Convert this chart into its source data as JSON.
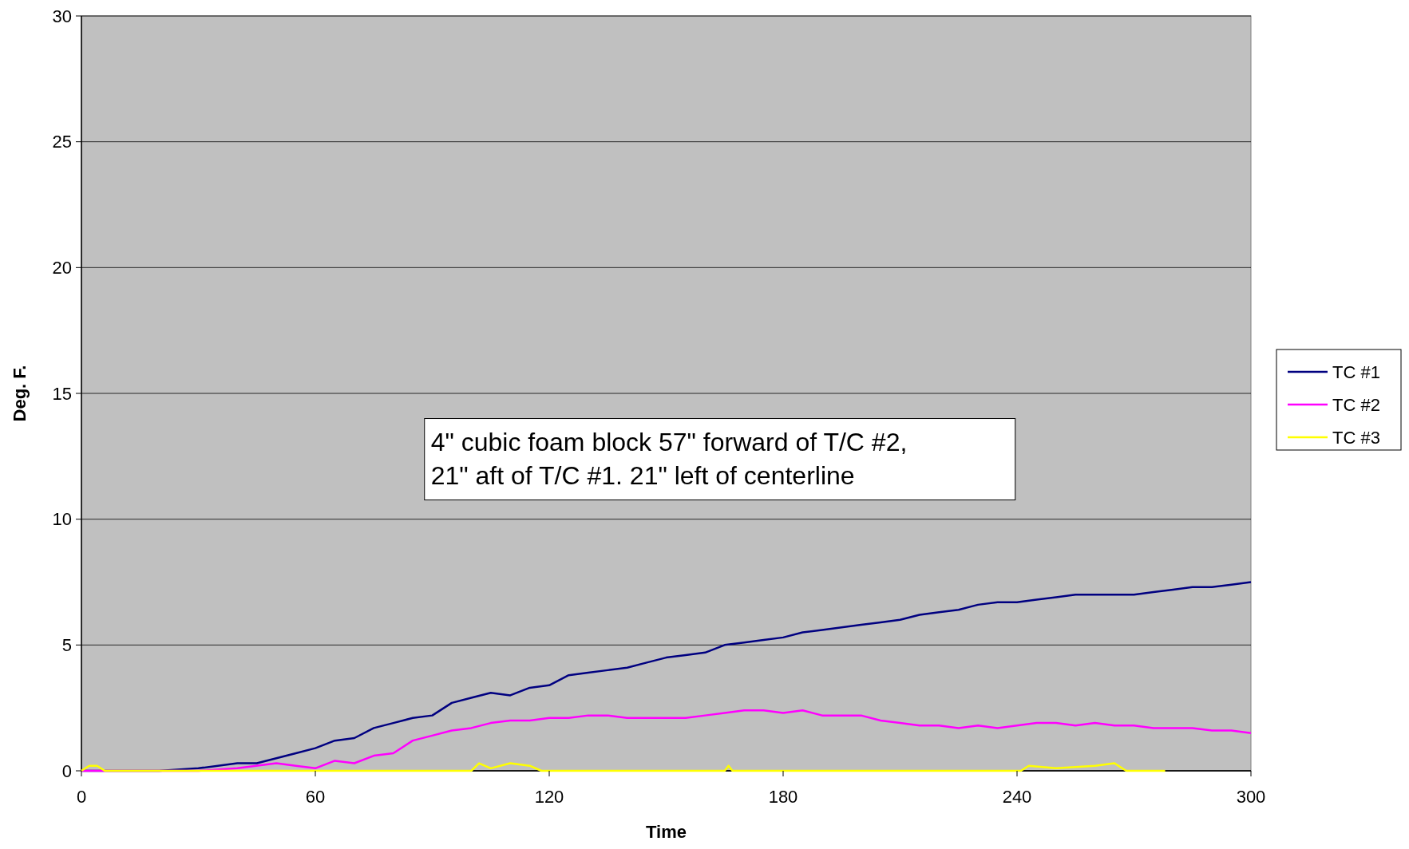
{
  "chart_data": {
    "type": "line",
    "xlabel": "Time",
    "ylabel": "Deg. F.",
    "xlim": [
      0,
      300
    ],
    "xticks": [
      0,
      60,
      120,
      180,
      240,
      300
    ],
    "ylim": [
      0,
      30
    ],
    "yticks": [
      0,
      5,
      10,
      15,
      20,
      25,
      30
    ],
    "grid": "y",
    "legend": "right",
    "marker": "none",
    "line_style": "solid",
    "annotations": [
      "4\" cubic foam block 57\" forward of T/C #2, 21\" aft of T/C #1. 21\" left of centerline"
    ],
    "series": [
      {
        "name": "TC #1",
        "color": "#000080",
        "x": [
          0,
          10,
          20,
          30,
          35,
          40,
          45,
          50,
          55,
          60,
          65,
          70,
          75,
          80,
          85,
          90,
          95,
          100,
          105,
          110,
          115,
          120,
          125,
          130,
          135,
          140,
          145,
          150,
          155,
          160,
          165,
          170,
          175,
          180,
          185,
          190,
          195,
          200,
          205,
          210,
          215,
          220,
          225,
          230,
          235,
          240,
          245,
          250,
          255,
          260,
          265,
          270,
          275,
          280,
          285,
          290,
          295,
          300
        ],
        "values": [
          0,
          0,
          0,
          0.1,
          0.2,
          0.3,
          0.3,
          0.5,
          0.7,
          0.9,
          1.2,
          1.3,
          1.7,
          1.9,
          2.1,
          2.2,
          2.7,
          2.9,
          3.1,
          3.0,
          3.3,
          3.4,
          3.8,
          3.9,
          4.0,
          4.1,
          4.3,
          4.5,
          4.6,
          4.7,
          5.0,
          5.1,
          5.2,
          5.3,
          5.5,
          5.6,
          5.7,
          5.8,
          5.9,
          6.0,
          6.2,
          6.3,
          6.4,
          6.6,
          6.7,
          6.7,
          6.8,
          6.9,
          7.0,
          7.0,
          7.0,
          7.0,
          7.1,
          7.2,
          7.3,
          7.3,
          7.4,
          7.5
        ]
      },
      {
        "name": "TC #2",
        "color": "#ff00ff",
        "x": [
          0,
          20,
          30,
          40,
          50,
          55,
          60,
          65,
          70,
          75,
          80,
          85,
          90,
          95,
          100,
          105,
          110,
          115,
          120,
          125,
          130,
          135,
          140,
          145,
          150,
          155,
          160,
          165,
          170,
          175,
          180,
          185,
          190,
          195,
          200,
          205,
          210,
          215,
          220,
          225,
          230,
          235,
          240,
          245,
          250,
          255,
          260,
          265,
          270,
          275,
          280,
          285,
          290,
          295,
          300
        ],
        "values": [
          0,
          0,
          0,
          0.1,
          0.3,
          0.2,
          0.1,
          0.4,
          0.3,
          0.6,
          0.7,
          1.2,
          1.4,
          1.6,
          1.7,
          1.9,
          2.0,
          2.0,
          2.1,
          2.1,
          2.2,
          2.2,
          2.1,
          2.1,
          2.1,
          2.1,
          2.2,
          2.3,
          2.4,
          2.4,
          2.3,
          2.4,
          2.2,
          2.2,
          2.2,
          2.0,
          1.9,
          1.8,
          1.8,
          1.7,
          1.8,
          1.7,
          1.8,
          1.9,
          1.9,
          1.8,
          1.9,
          1.8,
          1.8,
          1.7,
          1.7,
          1.7,
          1.6,
          1.6,
          1.5
        ]
      },
      {
        "name": "TC #3",
        "color": "#ffff00",
        "x": [
          0,
          2,
          4,
          6,
          100,
          102,
          105,
          110,
          115,
          118,
          165,
          166,
          167,
          241,
          243,
          250,
          260,
          265,
          268,
          278
        ],
        "values": [
          0,
          0.2,
          0.2,
          0,
          0,
          0.3,
          0.1,
          0.3,
          0.2,
          0,
          0,
          0.2,
          0,
          0,
          0.2,
          0.1,
          0.2,
          0.3,
          0,
          0
        ]
      }
    ]
  }
}
